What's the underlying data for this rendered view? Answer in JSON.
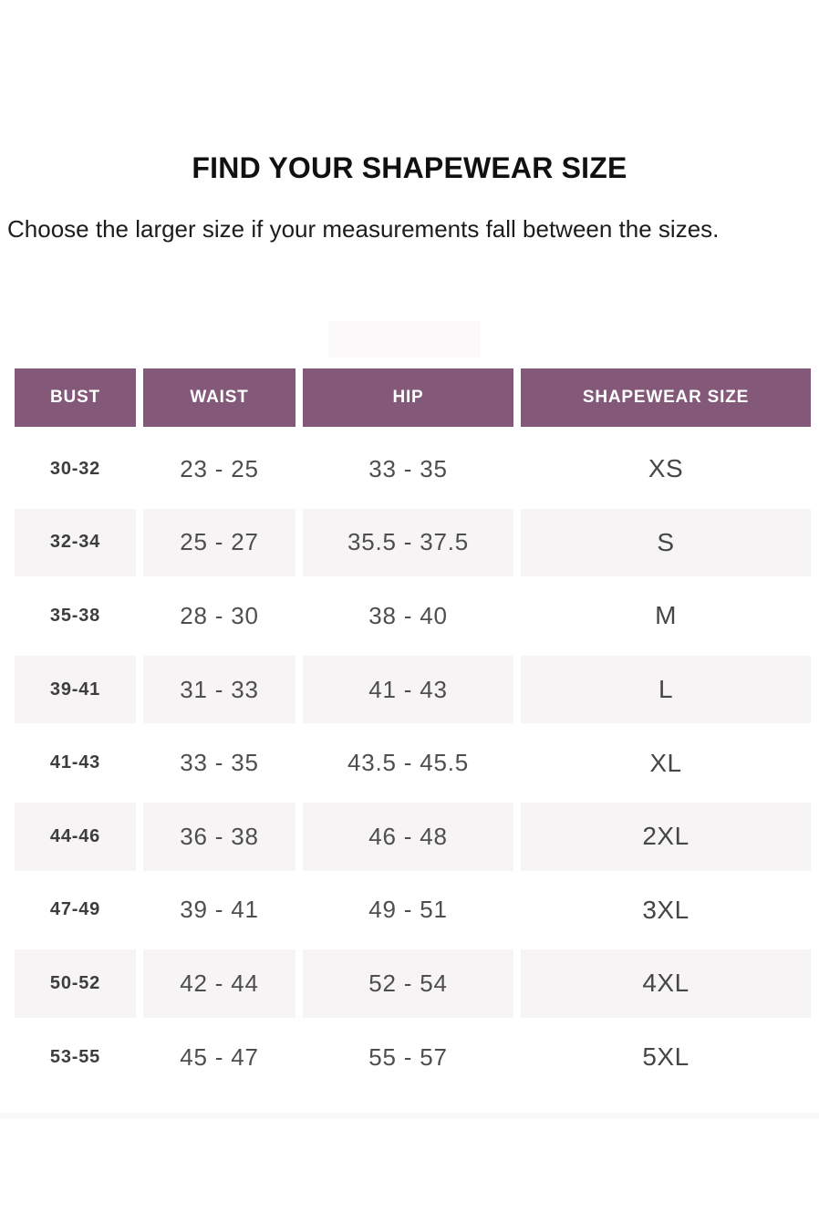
{
  "page": {
    "title": "FIND YOUR SHAPEWEAR SIZE",
    "subtitle": "Choose the larger size if your measurements fall between the sizes."
  },
  "size_chart": {
    "columns": [
      "BUST",
      "WAIST",
      "HIP",
      "SHAPEWEAR SIZE"
    ],
    "rows": [
      {
        "bust": "30-32",
        "waist": "23 - 25",
        "hip": "33 - 35",
        "size": "XS"
      },
      {
        "bust": "32-34",
        "waist": "25 - 27",
        "hip": "35.5 - 37.5",
        "size": "S"
      },
      {
        "bust": "35-38",
        "waist": "28 - 30",
        "hip": "38 - 40",
        "size": "M"
      },
      {
        "bust": "39-41",
        "waist": "31 - 33",
        "hip": "41 - 43",
        "size": "L"
      },
      {
        "bust": "41-43",
        "waist": "33 - 35",
        "hip": "43.5 - 45.5",
        "size": "XL"
      },
      {
        "bust": "44-46",
        "waist": "36 - 38",
        "hip": "46 - 48",
        "size": "2XL"
      },
      {
        "bust": "47-49",
        "waist": "39 - 41",
        "hip": "49 - 51",
        "size": "3XL"
      },
      {
        "bust": "50-52",
        "waist": "42 - 44",
        "hip": "52 - 54",
        "size": "4XL"
      },
      {
        "bust": "53-55",
        "waist": "45 - 47",
        "hip": "55 - 57",
        "size": "5XL"
      }
    ],
    "colors": {
      "header_bg": "#845879",
      "header_text": "#ffffff",
      "alt_row_bg": "#f6f4f5"
    }
  }
}
